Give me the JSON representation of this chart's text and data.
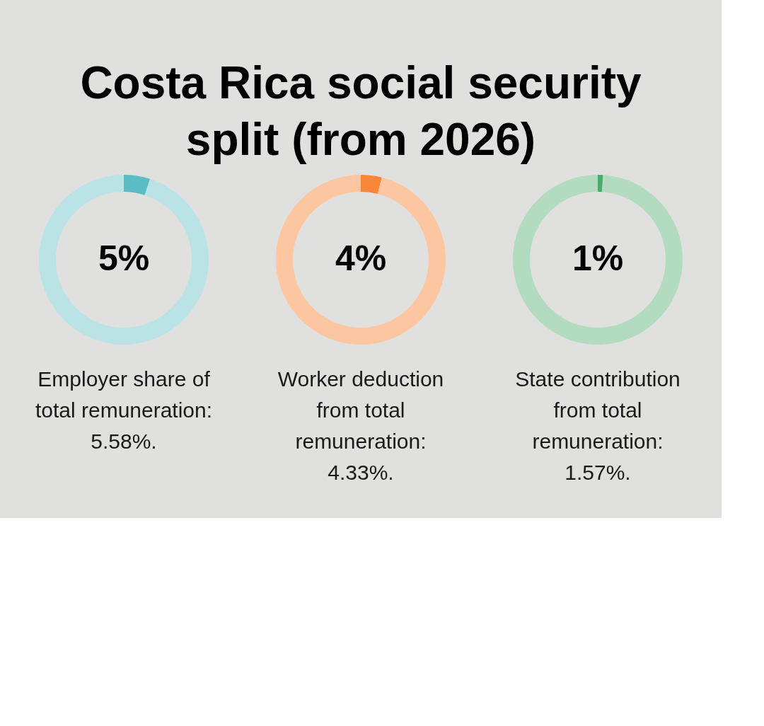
{
  "chart_data": [
    {
      "type": "other",
      "title": "Costa Rica social security split (from 2026)"
    },
    {
      "type": "donut",
      "categories": [
        null,
        null
      ],
      "values": [
        5,
        95
      ],
      "colors": [
        "#5bbcc4",
        "#bbe3e5"
      ],
      "value_labels": [
        "5%",
        null
      ],
      "annotations": [
        "Employer share of total remuneration: 5.58%."
      ]
    },
    {
      "type": "donut",
      "categories": [
        null,
        null
      ],
      "values": [
        4,
        96
      ],
      "colors": [
        "#f9873a",
        "#fcc7a0"
      ],
      "value_labels": [
        "4%",
        null
      ],
      "annotations": [
        "Worker deduction from total remuneration: 4.33%."
      ]
    },
    {
      "type": "donut",
      "categories": [
        null,
        null
      ],
      "values": [
        1,
        99
      ],
      "colors": [
        "#4caa6c",
        "#b2dbc0"
      ],
      "value_labels": [
        "1%",
        null
      ],
      "annotations": [
        "State contribution from total remuneration: 1.57%."
      ]
    }
  ]
}
